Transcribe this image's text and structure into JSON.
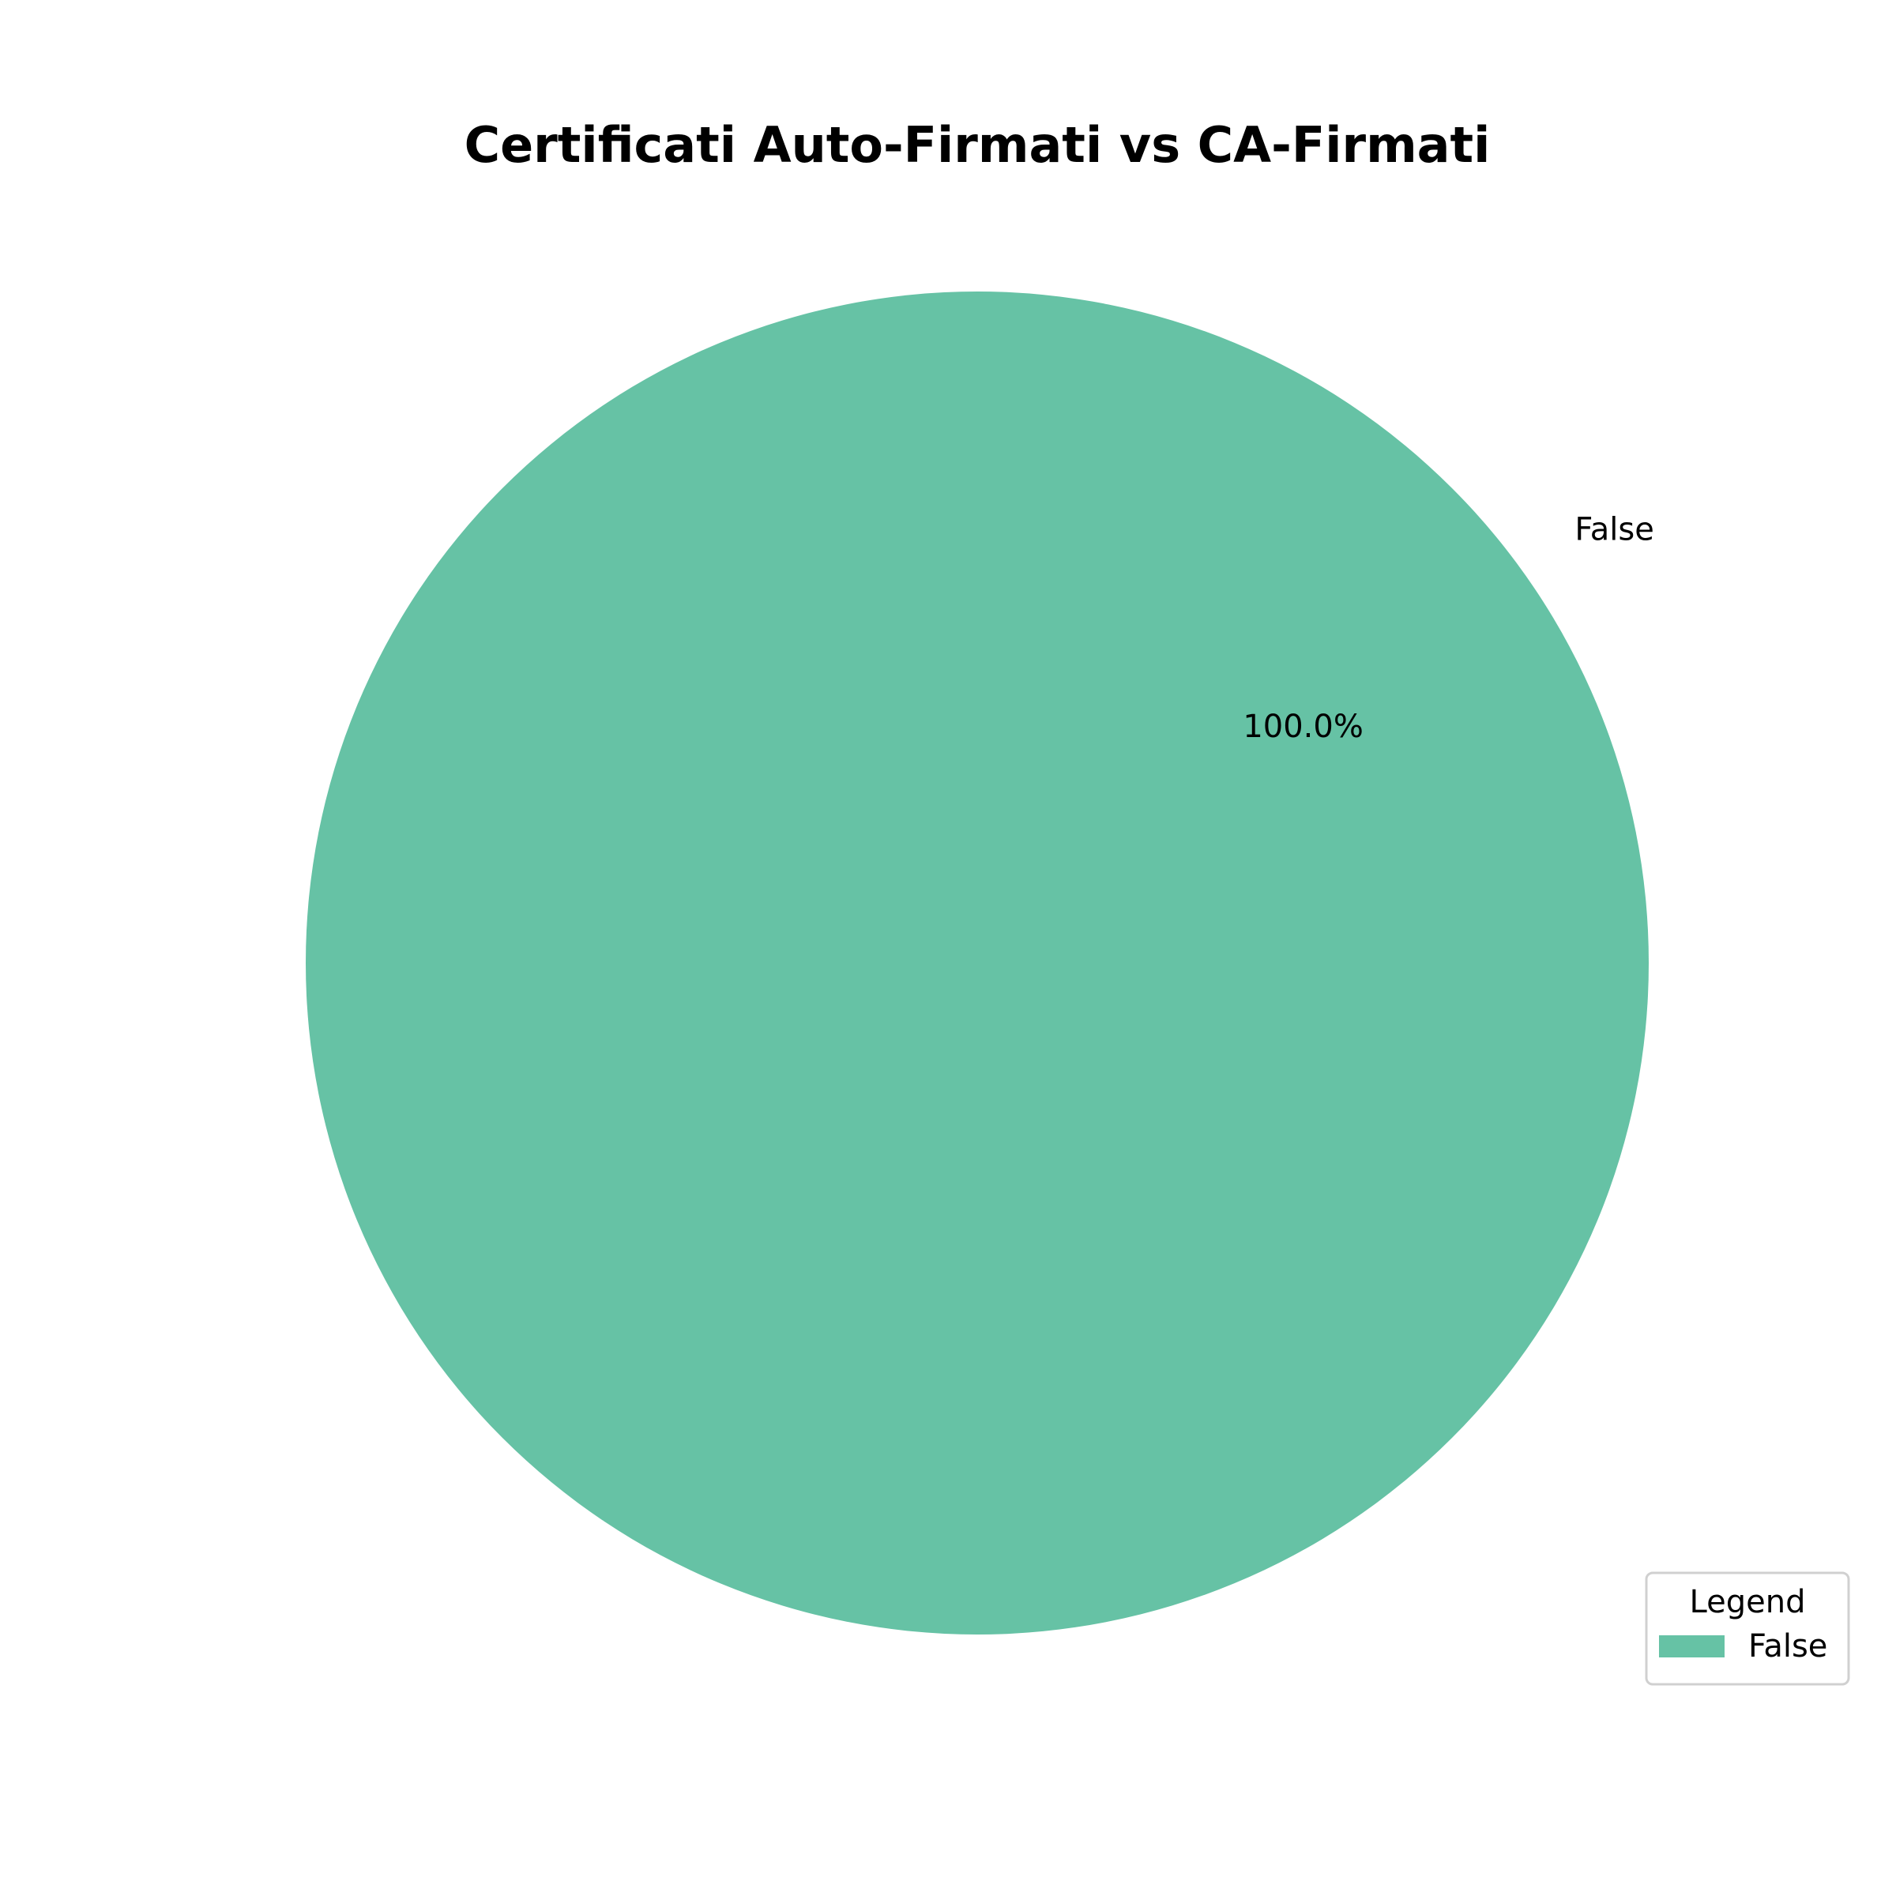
{
  "chart_data": {
    "type": "pie",
    "title": "Certificati Auto-Firmati vs CA-Firmati",
    "categories": [
      "False"
    ],
    "values": [
      100.0
    ],
    "percent_labels": [
      "100.0%"
    ],
    "colors": [
      "#66c2a5"
    ],
    "legend": {
      "title": "Legend",
      "placement": "bottom-right",
      "entries": [
        "False"
      ]
    }
  }
}
